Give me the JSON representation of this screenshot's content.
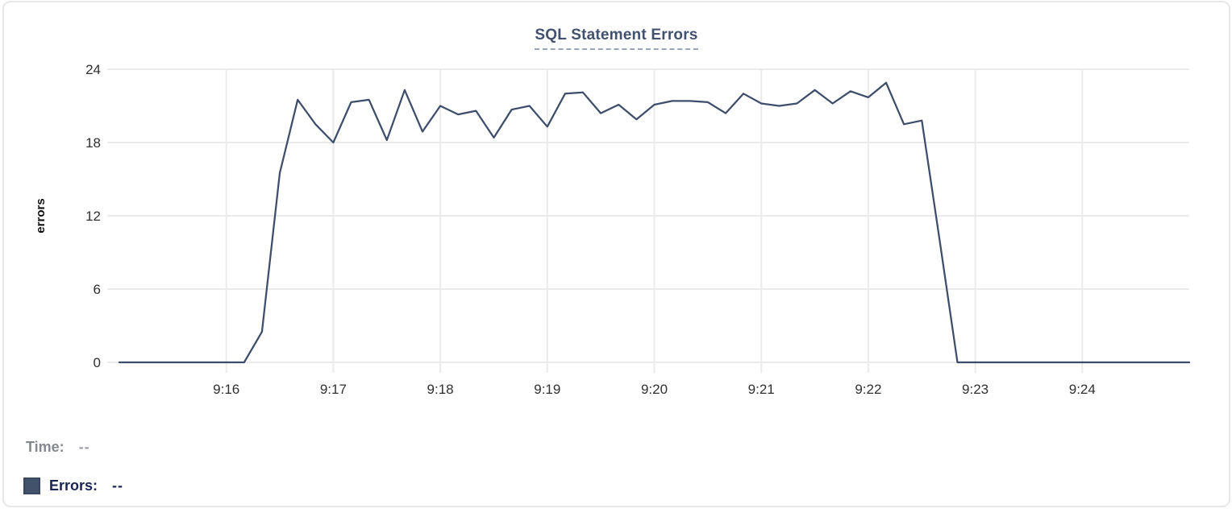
{
  "card": {
    "title": "SQL Statement Errors"
  },
  "legend": {
    "time_label": "Time:",
    "time_value": "--",
    "errors_label": "Errors:",
    "errors_value": "--"
  },
  "colors": {
    "line": "#3e4e6a",
    "swatch": "#43526b",
    "grid": "#ebebeb",
    "tick_text": "#303030",
    "title_text": "#42526e",
    "axis_label_text": "#111111"
  },
  "chart_data": {
    "type": "line",
    "title": "SQL Statement Errors",
    "xlabel": "",
    "ylabel": "errors",
    "ylim": [
      0,
      24
    ],
    "y_ticks": [
      0,
      6,
      12,
      18,
      24
    ],
    "x_ticks": [
      "9:16",
      "9:17",
      "9:18",
      "9:19",
      "9:20",
      "9:21",
      "9:22",
      "9:23",
      "9:24"
    ],
    "x_axis_start": "9:15:00",
    "x_axis_end": "9:25:00",
    "grid": true,
    "legend_position": "bottom-left",
    "series": [
      {
        "name": "Errors",
        "points": [
          [
            "9:15:00",
            0
          ],
          [
            "9:15:10",
            0
          ],
          [
            "9:15:20",
            0
          ],
          [
            "9:15:30",
            0
          ],
          [
            "9:15:40",
            0
          ],
          [
            "9:15:50",
            0
          ],
          [
            "9:16:00",
            0
          ],
          [
            "9:16:10",
            0
          ],
          [
            "9:16:20",
            2.5
          ],
          [
            "9:16:30",
            15.5
          ],
          [
            "9:16:40",
            21.5
          ],
          [
            "9:16:50",
            19.5
          ],
          [
            "9:17:00",
            18
          ],
          [
            "9:17:10",
            21.3
          ],
          [
            "9:17:20",
            21.5
          ],
          [
            "9:17:30",
            18.2
          ],
          [
            "9:17:40",
            22.3
          ],
          [
            "9:17:50",
            18.9
          ],
          [
            "9:18:00",
            21
          ],
          [
            "9:18:10",
            20.3
          ],
          [
            "9:18:20",
            20.6
          ],
          [
            "9:18:30",
            18.4
          ],
          [
            "9:18:40",
            20.7
          ],
          [
            "9:18:50",
            21
          ],
          [
            "9:19:00",
            19.3
          ],
          [
            "9:19:10",
            22
          ],
          [
            "9:19:20",
            22.1
          ],
          [
            "9:19:30",
            20.4
          ],
          [
            "9:19:40",
            21.1
          ],
          [
            "9:19:50",
            19.9
          ],
          [
            "9:20:00",
            21.1
          ],
          [
            "9:20:10",
            21.4
          ],
          [
            "9:20:20",
            21.4
          ],
          [
            "9:20:30",
            21.3
          ],
          [
            "9:20:40",
            20.4
          ],
          [
            "9:20:50",
            22
          ],
          [
            "9:21:00",
            21.2
          ],
          [
            "9:21:10",
            21
          ],
          [
            "9:21:20",
            21.2
          ],
          [
            "9:21:30",
            22.3
          ],
          [
            "9:21:40",
            21.2
          ],
          [
            "9:21:50",
            22.2
          ],
          [
            "9:22:00",
            21.7
          ],
          [
            "9:22:10",
            22.9
          ],
          [
            "9:22:20",
            19.5
          ],
          [
            "9:22:30",
            19.8
          ],
          [
            "9:22:40",
            10
          ],
          [
            "9:22:50",
            0
          ],
          [
            "9:23:00",
            0
          ],
          [
            "9:23:10",
            0
          ],
          [
            "9:23:20",
            0
          ],
          [
            "9:23:30",
            0
          ],
          [
            "9:23:40",
            0
          ],
          [
            "9:23:50",
            0
          ],
          [
            "9:24:00",
            0
          ],
          [
            "9:24:10",
            0
          ],
          [
            "9:24:20",
            0
          ],
          [
            "9:24:30",
            0
          ],
          [
            "9:24:40",
            0
          ],
          [
            "9:24:50",
            0
          ],
          [
            "9:25:00",
            0
          ]
        ]
      }
    ]
  }
}
